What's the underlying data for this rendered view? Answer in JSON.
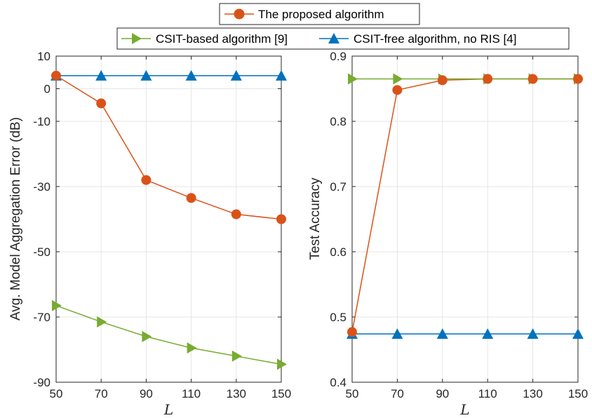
{
  "chart_data": [
    {
      "type": "line",
      "xlabel": "L",
      "ylabel": "Avg. Model Aggregation Error (dB)",
      "x": [
        50,
        70,
        90,
        110,
        130,
        150
      ],
      "xlim": [
        50,
        150
      ],
      "xticks": [
        "50",
        "70",
        "90",
        "110",
        "130",
        "150"
      ],
      "ylim": [
        -90,
        10
      ],
      "yticks": [
        10,
        0,
        -10,
        -30,
        -50,
        -70,
        -90
      ],
      "ytick_labels": [
        "10",
        "0",
        "-10",
        "-30",
        "-50",
        "-70",
        "-90"
      ],
      "grid": true,
      "series": [
        {
          "name": "The proposed algorithm",
          "color": "#D95319",
          "marker": "circle",
          "values": [
            4,
            -4.5,
            -28,
            -33.5,
            -38.5,
            -40
          ]
        },
        {
          "name": "CSIT-based algorithm [9]",
          "color": "#77AC30",
          "marker": "triangle-right",
          "values": [
            -66.5,
            -71.5,
            -76,
            -79.5,
            -82,
            -84.5
          ]
        },
        {
          "name": "CSIT-free algorithm, no RIS [4]",
          "color": "#0072BD",
          "marker": "triangle-up",
          "values": [
            4,
            4,
            4,
            4,
            4,
            4
          ]
        }
      ]
    },
    {
      "type": "line",
      "xlabel": "L",
      "ylabel": "Test Accuracy",
      "x": [
        50,
        70,
        90,
        110,
        130,
        150
      ],
      "xlim": [
        50,
        150
      ],
      "xticks": [
        "50",
        "70",
        "90",
        "110",
        "130",
        "150"
      ],
      "ylim": [
        0.4,
        0.9
      ],
      "yticks": [
        0.4,
        0.5,
        0.6,
        0.7,
        0.8,
        0.9
      ],
      "ytick_labels": [
        "0.4",
        "0.5",
        "0.6",
        "0.7",
        "0.8",
        "0.9"
      ],
      "grid": true,
      "series": [
        {
          "name": "The proposed algorithm",
          "color": "#D95319",
          "marker": "circle",
          "values": [
            0.477,
            0.848,
            0.863,
            0.865,
            0.865,
            0.865
          ]
        },
        {
          "name": "CSIT-based algorithm [9]",
          "color": "#77AC30",
          "marker": "triangle-right",
          "values": [
            0.865,
            0.865,
            0.865,
            0.865,
            0.865,
            0.865
          ]
        },
        {
          "name": "CSIT-free algorithm, no RIS [4]",
          "color": "#0072BD",
          "marker": "triangle-up",
          "values": [
            0.474,
            0.474,
            0.474,
            0.474,
            0.474,
            0.474
          ]
        }
      ]
    }
  ],
  "legend": {
    "placement": "top",
    "entries": [
      "The proposed algorithm",
      "CSIT-based algorithm [9]",
      "CSIT-free algorithm, no RIS [4]"
    ]
  }
}
